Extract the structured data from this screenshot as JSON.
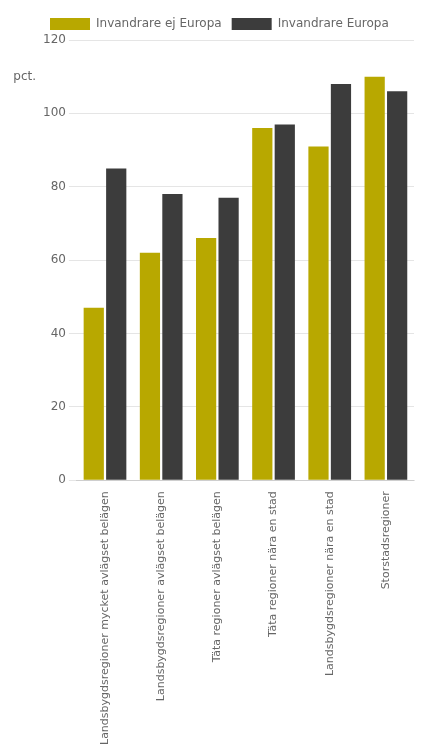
{
  "chart_data": {
    "type": "bar",
    "categories": [
      "Landsbygdsregioner mycket avlägset belägen",
      "Landsbygdsregioner avlägset belägen",
      "Täta regioner avlägset belägen",
      "Täta regioner nära en stad",
      "Landsbygdsregioner nära en stad",
      "Storstadsregioner"
    ],
    "series": [
      {
        "name": "Invandrare ej Europa",
        "color": "#B8A800",
        "values": [
          47,
          62,
          66,
          96,
          91,
          110
        ]
      },
      {
        "name": "Invandrare Europa",
        "color": "#3C3C3C",
        "values": [
          85,
          78,
          77,
          97,
          108,
          106
        ]
      }
    ],
    "ylim": [
      0,
      120
    ],
    "yticks": [
      0,
      20,
      40,
      60,
      80,
      100,
      120
    ],
    "annotations": [
      {
        "text": "pct.",
        "y": 110
      }
    ],
    "grid": true,
    "legend": "upper left"
  }
}
